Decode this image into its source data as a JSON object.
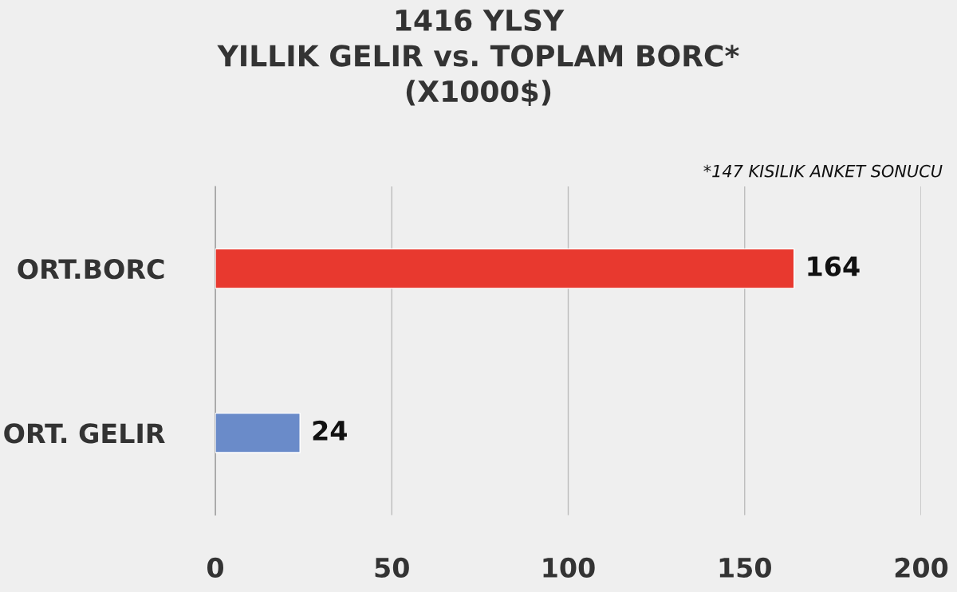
{
  "chart_data": {
    "type": "bar",
    "orientation": "horizontal",
    "title": "1416 YLSY\nYILLIK GELIR vs. TOPLAM BORC*\n(X1000$)",
    "categories": [
      "ORT.BORC",
      "ORT. GELIR"
    ],
    "values": [
      164,
      24
    ],
    "colors": [
      "#e8392f",
      "#6a8bc9"
    ],
    "xlim": [
      0,
      200
    ],
    "xticks": [
      0,
      50,
      100,
      150,
      200
    ],
    "grid": "x",
    "data_labels": true,
    "legend": false,
    "annotations": [
      "*147 KISILIK ANKET SONUCU"
    ]
  }
}
